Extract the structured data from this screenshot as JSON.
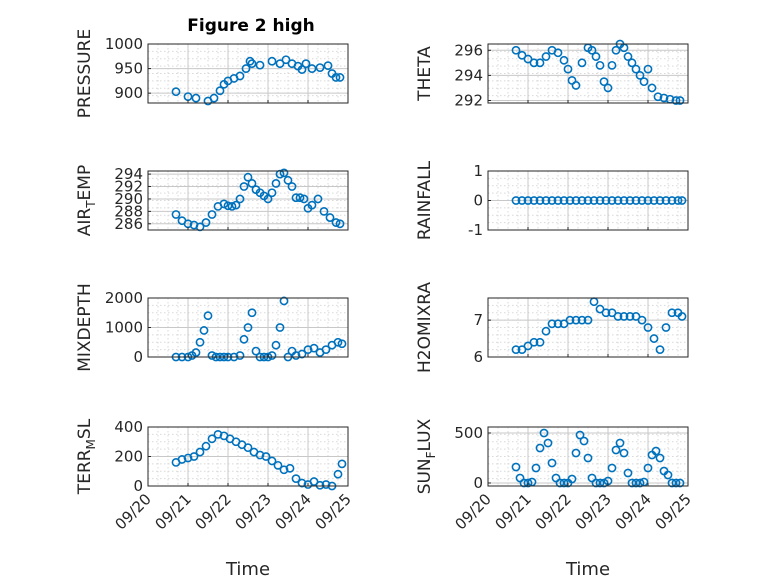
{
  "figure": {
    "title": "Figure 2 high"
  },
  "chart_data": [
    {
      "type": "scatter",
      "ylabel": "PRESSURE",
      "xlabel": "",
      "ylim": [
        880,
        1000
      ],
      "yticks": [
        900,
        950,
        1000
      ],
      "xlim": [
        0,
        5
      ],
      "show_xticks": false,
      "title": "Figure 2 high",
      "series": [
        {
          "x": [
            0.7,
            1.0,
            1.2,
            1.5,
            1.65,
            1.8,
            1.9,
            2.0,
            2.15,
            2.3,
            2.45,
            2.55,
            2.6,
            2.8,
            3.1,
            3.3,
            3.45,
            3.6,
            3.75,
            3.85,
            3.95,
            4.1,
            4.3,
            4.5,
            4.6,
            4.7,
            4.8
          ],
          "y": [
            903,
            893,
            890,
            884,
            890,
            905,
            918,
            925,
            930,
            935,
            950,
            965,
            960,
            957,
            965,
            960,
            968,
            960,
            955,
            948,
            960,
            950,
            952,
            956,
            940,
            932,
            932
          ]
        }
      ]
    },
    {
      "type": "scatter",
      "ylabel": "THETA",
      "xlabel": "",
      "ylim": [
        291.8,
        296.5
      ],
      "yticks": [
        292,
        294,
        296
      ],
      "xlim": [
        0,
        5
      ],
      "show_xticks": false,
      "series": [
        {
          "x": [
            0.7,
            0.85,
            1.0,
            1.15,
            1.3,
            1.45,
            1.6,
            1.75,
            1.9,
            2.0,
            2.1,
            2.2,
            2.35,
            2.5,
            2.6,
            2.7,
            2.8,
            2.9,
            3.0,
            3.1,
            3.2,
            3.3,
            3.4,
            3.5,
            3.6,
            3.7,
            3.8,
            3.9,
            4.0,
            4.1,
            4.25,
            4.4,
            4.55,
            4.7,
            4.8
          ],
          "y": [
            296,
            295.6,
            295.3,
            295,
            295,
            295.5,
            296,
            295.8,
            295.2,
            294.5,
            293.6,
            293.2,
            295,
            296.2,
            296,
            295.5,
            294.8,
            293.5,
            293,
            294.8,
            296,
            296.5,
            296.2,
            295.5,
            295,
            294.5,
            294,
            293.5,
            294.5,
            293,
            292.3,
            292.2,
            292.1,
            292,
            292
          ]
        }
      ]
    },
    {
      "type": "scatter",
      "ylabel": "AIR_TEMP",
      "ylabel_main": "AIR",
      "ylabel_sub": "T",
      "ylabel_rest": "EMP",
      "xlabel": "",
      "ylim": [
        285,
        294.5
      ],
      "yticks": [
        286,
        288,
        290,
        292,
        294
      ],
      "xlim": [
        0,
        5
      ],
      "show_xticks": false,
      "series": [
        {
          "x": [
            0.7,
            0.85,
            1.0,
            1.15,
            1.3,
            1.45,
            1.6,
            1.75,
            1.9,
            2.0,
            2.1,
            2.2,
            2.3,
            2.4,
            2.5,
            2.6,
            2.7,
            2.8,
            2.9,
            3.0,
            3.1,
            3.2,
            3.3,
            3.4,
            3.5,
            3.6,
            3.7,
            3.8,
            3.9,
            4.0,
            4.1,
            4.25,
            4.4,
            4.55,
            4.7,
            4.8
          ],
          "y": [
            287.5,
            286.5,
            286,
            285.8,
            285.5,
            286.2,
            287.5,
            288.8,
            289.2,
            288.9,
            288.8,
            289,
            290,
            292,
            293.5,
            292.5,
            291.5,
            291,
            290.5,
            290,
            291,
            292.5,
            294,
            294.2,
            293,
            292,
            290.2,
            290.2,
            290,
            288.5,
            289,
            290,
            288,
            287,
            286.2,
            286
          ]
        }
      ]
    },
    {
      "type": "scatter",
      "ylabel": "RAINFALL",
      "xlabel": "",
      "ylim": [
        -1,
        1
      ],
      "yticks": [
        -1,
        0,
        1
      ],
      "xlim": [
        0,
        5
      ],
      "show_xticks": false,
      "series": [
        {
          "x": [
            0.7,
            0.85,
            1.0,
            1.15,
            1.3,
            1.45,
            1.6,
            1.75,
            1.9,
            2.05,
            2.2,
            2.35,
            2.5,
            2.65,
            2.8,
            2.95,
            3.1,
            3.25,
            3.4,
            3.55,
            3.7,
            3.85,
            4.0,
            4.15,
            4.3,
            4.45,
            4.6,
            4.75,
            4.85
          ],
          "y": [
            0,
            0,
            0,
            0,
            0,
            0,
            0,
            0,
            0,
            0,
            0,
            0,
            0,
            0,
            0,
            0,
            0,
            0,
            0,
            0,
            0,
            0,
            0,
            0,
            0,
            0,
            0,
            0,
            0
          ]
        }
      ]
    },
    {
      "type": "scatter",
      "ylabel": "MIXDEPTH",
      "xlabel": "",
      "ylim": [
        0,
        2000
      ],
      "yticks": [
        0,
        1000,
        2000
      ],
      "xlim": [
        0,
        5
      ],
      "show_xticks": false,
      "series": [
        {
          "x": [
            0.7,
            0.85,
            1.0,
            1.1,
            1.2,
            1.3,
            1.4,
            1.5,
            1.6,
            1.7,
            1.8,
            1.9,
            2.0,
            2.15,
            2.3,
            2.4,
            2.5,
            2.6,
            2.7,
            2.8,
            2.9,
            3.0,
            3.1,
            3.2,
            3.3,
            3.4,
            3.5,
            3.6,
            3.7,
            3.85,
            4.0,
            4.15,
            4.3,
            4.45,
            4.6,
            4.75,
            4.85
          ],
          "y": [
            0,
            0,
            0,
            50,
            150,
            500,
            900,
            1400,
            50,
            0,
            0,
            0,
            0,
            0,
            50,
            600,
            1000,
            1500,
            200,
            0,
            0,
            0,
            50,
            400,
            1000,
            1900,
            0,
            200,
            50,
            100,
            250,
            300,
            150,
            250,
            400,
            500,
            450
          ]
        }
      ]
    },
    {
      "type": "scatter",
      "ylabel": "H2OMIXRA",
      "xlabel": "",
      "ylim": [
        6,
        7.6
      ],
      "yticks": [
        6,
        7
      ],
      "xlim": [
        0,
        5
      ],
      "show_xticks": false,
      "series": [
        {
          "x": [
            0.7,
            0.85,
            1.0,
            1.15,
            1.3,
            1.45,
            1.6,
            1.75,
            1.9,
            2.05,
            2.2,
            2.35,
            2.5,
            2.65,
            2.8,
            2.95,
            3.1,
            3.25,
            3.4,
            3.55,
            3.7,
            3.85,
            4.0,
            4.15,
            4.3,
            4.45,
            4.6,
            4.75,
            4.85
          ],
          "y": [
            6.2,
            6.2,
            6.3,
            6.4,
            6.4,
            6.7,
            6.9,
            6.9,
            6.9,
            7.0,
            7.0,
            7.0,
            7.0,
            7.5,
            7.3,
            7.2,
            7.2,
            7.1,
            7.1,
            7.1,
            7.1,
            7.0,
            6.8,
            6.5,
            6.2,
            6.8,
            7.2,
            7.2,
            7.1
          ]
        }
      ]
    },
    {
      "type": "scatter",
      "ylabel": "TERR_MSL",
      "ylabel_main": "TERR",
      "ylabel_sub": "M",
      "ylabel_rest": "SL",
      "xlabel": "Time",
      "ylim": [
        0,
        400
      ],
      "yticks": [
        0,
        200,
        400
      ],
      "xlim": [
        0,
        5
      ],
      "show_xticks": true,
      "xticklabels": [
        "09/20",
        "09/21",
        "09/22",
        "09/23",
        "09/24",
        "09/25"
      ],
      "series": [
        {
          "x": [
            0.7,
            0.85,
            1.0,
            1.15,
            1.3,
            1.45,
            1.6,
            1.75,
            1.9,
            2.05,
            2.2,
            2.35,
            2.5,
            2.65,
            2.8,
            2.95,
            3.1,
            3.25,
            3.4,
            3.55,
            3.7,
            3.85,
            4.0,
            4.15,
            4.3,
            4.45,
            4.6,
            4.75,
            4.85
          ],
          "y": [
            160,
            180,
            190,
            200,
            230,
            270,
            320,
            350,
            340,
            320,
            300,
            280,
            260,
            230,
            210,
            200,
            170,
            140,
            110,
            120,
            50,
            20,
            10,
            30,
            5,
            10,
            0,
            80,
            150
          ]
        }
      ]
    },
    {
      "type": "scatter",
      "ylabel": "SUN_FLUX",
      "ylabel_main": "SUN",
      "ylabel_sub": "F",
      "ylabel_rest": "LUX",
      "xlabel": "Time",
      "ylim": [
        -30,
        560
      ],
      "yticks": [
        0,
        500
      ],
      "xlim": [
        0,
        5
      ],
      "show_xticks": true,
      "xticklabels": [
        "09/20",
        "09/21",
        "09/22",
        "09/23",
        "09/24",
        "09/25"
      ],
      "series": [
        {
          "x": [
            0.7,
            0.8,
            0.9,
            1.0,
            1.1,
            1.2,
            1.3,
            1.4,
            1.5,
            1.6,
            1.7,
            1.8,
            1.9,
            2.0,
            2.1,
            2.2,
            2.3,
            2.4,
            2.5,
            2.6,
            2.7,
            2.8,
            2.9,
            3.0,
            3.1,
            3.2,
            3.3,
            3.4,
            3.5,
            3.6,
            3.7,
            3.8,
            3.9,
            4.0,
            4.1,
            4.2,
            4.3,
            4.4,
            4.5,
            4.6,
            4.7,
            4.8
          ],
          "y": [
            160,
            50,
            0,
            0,
            10,
            150,
            350,
            500,
            400,
            200,
            50,
            0,
            0,
            0,
            40,
            300,
            480,
            420,
            250,
            50,
            0,
            0,
            0,
            20,
            150,
            330,
            400,
            300,
            100,
            0,
            0,
            0,
            10,
            150,
            280,
            320,
            250,
            120,
            80,
            0,
            0,
            0
          ]
        }
      ]
    }
  ]
}
